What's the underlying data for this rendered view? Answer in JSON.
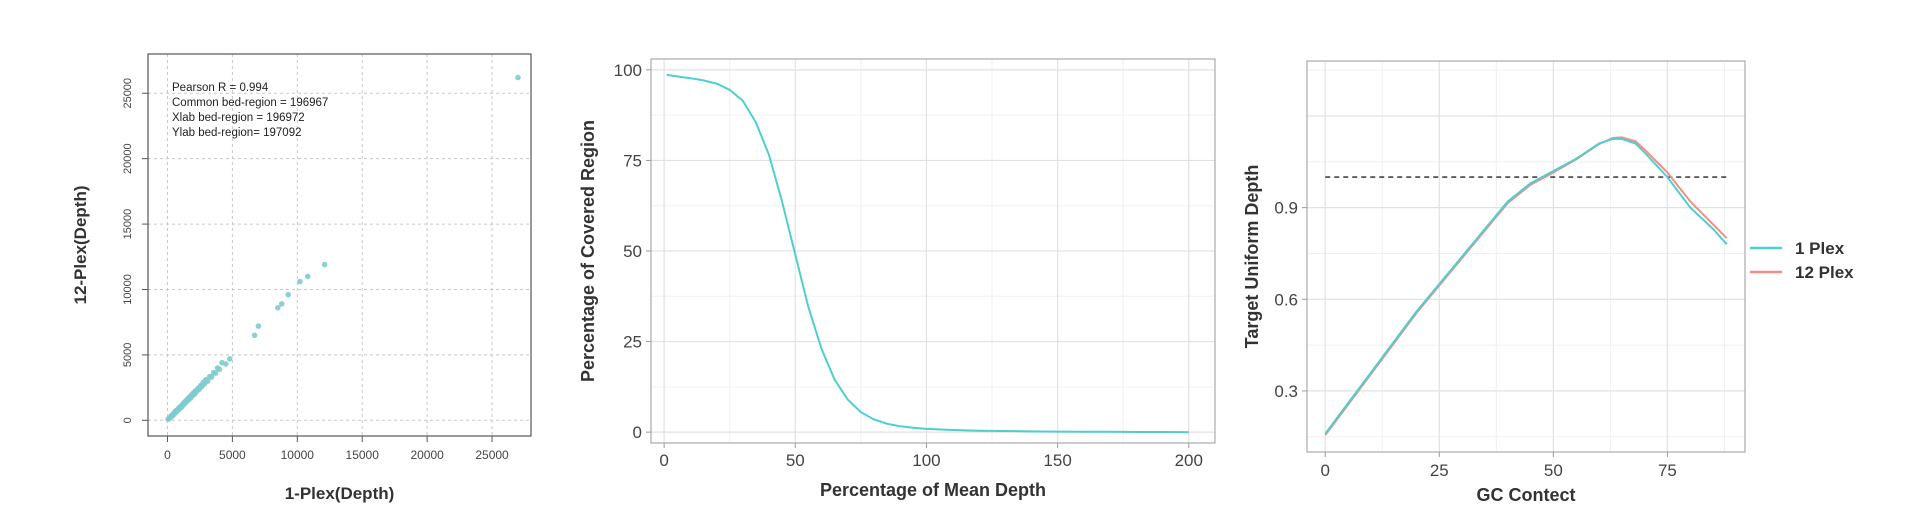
{
  "chart_data": [
    {
      "type": "scatter",
      "xlabel": "1-Plex(Depth)",
      "ylabel": "12-Plex(Depth)",
      "xlim": [
        -1500,
        28000
      ],
      "ylim": [
        -1200,
        28000
      ],
      "xticks": [
        0,
        5000,
        10000,
        15000,
        20000,
        25000
      ],
      "yticks": [
        0,
        5000,
        10000,
        15000,
        20000,
        25000
      ],
      "grid": true,
      "color": "#7fcccc",
      "annotations": [
        "Pearson R =  0.994",
        "Common bed-region =  196967",
        "Xlab bed-region =  196972",
        "Ylab bed-region=  197092"
      ],
      "points": [
        [
          50,
          80
        ],
        [
          120,
          150
        ],
        [
          200,
          180
        ],
        [
          260,
          320
        ],
        [
          320,
          280
        ],
        [
          380,
          420
        ],
        [
          450,
          400
        ],
        [
          500,
          560
        ],
        [
          560,
          520
        ],
        [
          620,
          700
        ],
        [
          700,
          650
        ],
        [
          760,
          800
        ],
        [
          820,
          780
        ],
        [
          880,
          950
        ],
        [
          950,
          900
        ],
        [
          1000,
          1050
        ],
        [
          1080,
          1000
        ],
        [
          1150,
          1200
        ],
        [
          1200,
          1150
        ],
        [
          1280,
          1350
        ],
        [
          1350,
          1300
        ],
        [
          1420,
          1500
        ],
        [
          1500,
          1450
        ],
        [
          1560,
          1650
        ],
        [
          1620,
          1580
        ],
        [
          1700,
          1780
        ],
        [
          1780,
          1700
        ],
        [
          1850,
          1950
        ],
        [
          1920,
          1880
        ],
        [
          2000,
          2100
        ],
        [
          2080,
          2000
        ],
        [
          2150,
          2250
        ],
        [
          2250,
          2200
        ],
        [
          2350,
          2450
        ],
        [
          2450,
          2380
        ],
        [
          2550,
          2650
        ],
        [
          2650,
          2580
        ],
        [
          2750,
          2900
        ],
        [
          2850,
          2780
        ],
        [
          2950,
          3100
        ],
        [
          3100,
          3000
        ],
        [
          3250,
          3350
        ],
        [
          3400,
          3300
        ],
        [
          3550,
          3650
        ],
        [
          3700,
          3600
        ],
        [
          3850,
          4000
        ],
        [
          4000,
          3900
        ],
        [
          4200,
          4400
        ],
        [
          4500,
          4300
        ],
        [
          4800,
          4700
        ],
        [
          6700,
          6500
        ],
        [
          7000,
          7200
        ],
        [
          8500,
          8600
        ],
        [
          8800,
          8900
        ],
        [
          9300,
          9600
        ],
        [
          10200,
          10600
        ],
        [
          10800,
          11000
        ],
        [
          12100,
          11900
        ],
        [
          27000,
          26200
        ]
      ]
    },
    {
      "type": "line",
      "xlabel": "Percentage of Mean Depth",
      "ylabel": "Percentage of Covered Region",
      "xlim": [
        -5,
        210
      ],
      "ylim": [
        -3,
        103
      ],
      "xticks": [
        0,
        50,
        100,
        150,
        200
      ],
      "yticks": [
        0,
        25,
        50,
        75,
        100
      ],
      "grid": true,
      "series": [
        {
          "color": "#4ecfcf",
          "x": [
            1,
            5,
            10,
            15,
            20,
            25,
            30,
            35,
            40,
            45,
            50,
            55,
            60,
            65,
            70,
            75,
            80,
            85,
            90,
            95,
            100,
            110,
            120,
            130,
            140,
            150,
            160,
            170,
            180,
            190,
            200
          ],
          "y": [
            98.6,
            98.2,
            97.7,
            97.1,
            96.2,
            94.5,
            91.5,
            85.5,
            76.5,
            63.5,
            49.0,
            34.5,
            23.0,
            14.5,
            9.0,
            5.5,
            3.5,
            2.3,
            1.6,
            1.2,
            0.9,
            0.6,
            0.4,
            0.3,
            0.2,
            0.15,
            0.1,
            0.1,
            0.05,
            0.05,
            0.0
          ]
        }
      ]
    },
    {
      "type": "line",
      "xlabel": "GC Contect",
      "ylabel": "Target Uniform Depth",
      "xlim": [
        -4,
        92
      ],
      "ylim": [
        0.1,
        1.38
      ],
      "xticks": [
        0,
        25,
        50,
        75
      ],
      "yticks": [
        0.3,
        0.6,
        0.9
      ],
      "grid": true,
      "reference_line": 1.0,
      "legend_position": "right",
      "series": [
        {
          "name": "1 Plex",
          "color": "#4ecfcf",
          "x": [
            0,
            5,
            10,
            15,
            20,
            25,
            30,
            35,
            40,
            45,
            50,
            55,
            60,
            63,
            65,
            68,
            70,
            75,
            80,
            85,
            88
          ],
          "y": [
            0.16,
            0.26,
            0.36,
            0.46,
            0.56,
            0.65,
            0.74,
            0.83,
            0.92,
            0.98,
            1.02,
            1.06,
            1.11,
            1.125,
            1.125,
            1.11,
            1.08,
            1.0,
            0.9,
            0.83,
            0.78
          ]
        },
        {
          "name": "12 Plex",
          "color": "#f08f88",
          "x": [
            0,
            5,
            10,
            15,
            20,
            25,
            30,
            35,
            40,
            45,
            50,
            55,
            60,
            63,
            65,
            68,
            70,
            75,
            80,
            85,
            88
          ],
          "y": [
            0.155,
            0.255,
            0.355,
            0.455,
            0.555,
            0.645,
            0.735,
            0.825,
            0.915,
            0.975,
            1.015,
            1.058,
            1.108,
            1.128,
            1.13,
            1.117,
            1.09,
            1.015,
            0.92,
            0.845,
            0.8
          ]
        }
      ]
    }
  ]
}
